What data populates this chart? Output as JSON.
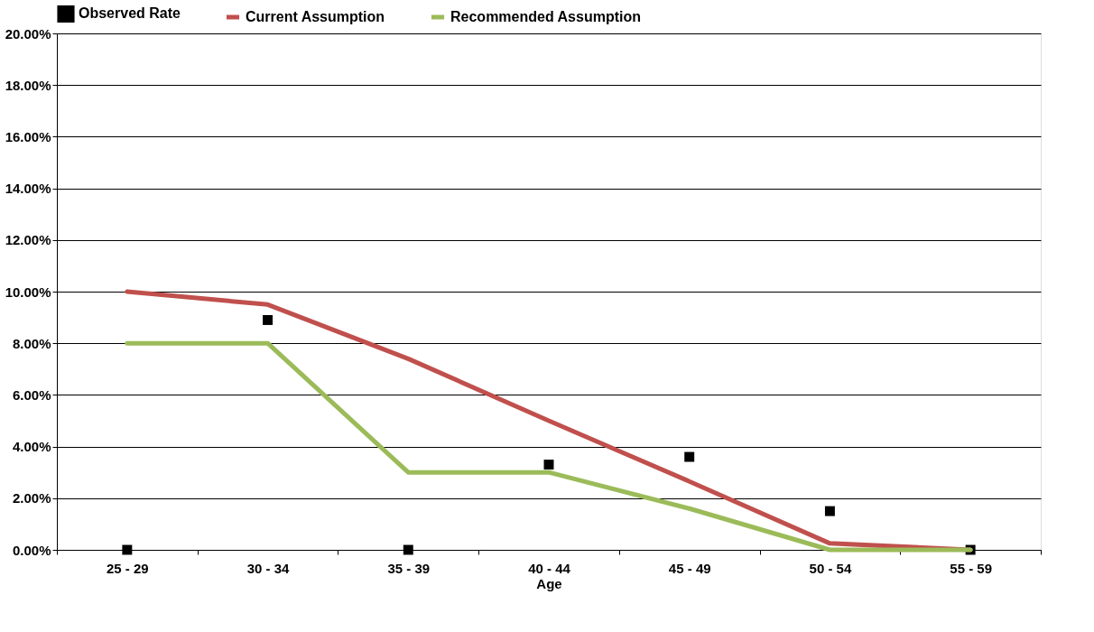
{
  "chart_data": {
    "type": "line",
    "xlabel": "Age",
    "categories": [
      "25 - 29",
      "30 - 34",
      "35 - 39",
      "40 - 44",
      "45 - 49",
      "50 - 54",
      "55 - 59"
    ],
    "series": [
      {
        "name": "Observed Rate",
        "type": "scatter",
        "marker": "square",
        "color": "#000000",
        "values": [
          0,
          8.9,
          0,
          3.3,
          3.6,
          1.5,
          0
        ]
      },
      {
        "name": "Current Assumption",
        "color": "#c0504d",
        "values": [
          10,
          9.5,
          7.4,
          5.0,
          2.65,
          0.25,
          0
        ]
      },
      {
        "name": "Recommended Assumption",
        "color": "#9bbb59",
        "values": [
          8,
          8,
          3,
          3,
          1.6,
          0,
          0
        ]
      }
    ],
    "ylim": [
      0,
      20
    ],
    "yticks": [
      {
        "value": 0,
        "label": "0.00%"
      },
      {
        "value": 2,
        "label": "2.00%"
      },
      {
        "value": 4,
        "label": "4.00%"
      },
      {
        "value": 6,
        "label": "6.00%"
      },
      {
        "value": 8,
        "label": "8.00%"
      },
      {
        "value": 10,
        "label": "10.00%"
      },
      {
        "value": 12,
        "label": "12.00%"
      },
      {
        "value": 14,
        "label": "14.00%"
      },
      {
        "value": 16,
        "label": "16.00%"
      },
      {
        "value": 18,
        "label": "18.00%"
      },
      {
        "value": 20,
        "label": "20.00%"
      }
    ],
    "grid": "y",
    "legend": "top"
  }
}
